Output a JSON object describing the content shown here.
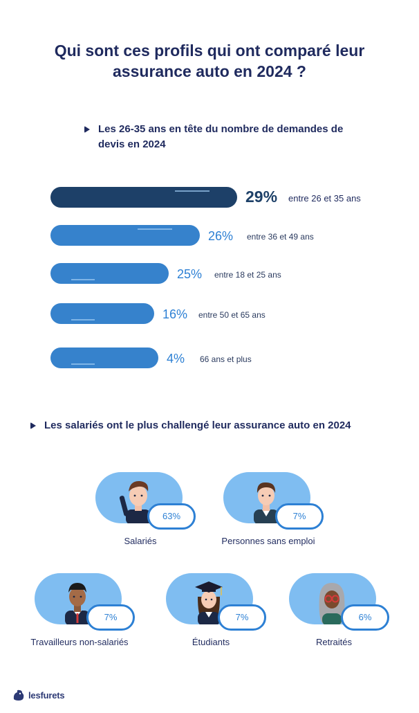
{
  "title": {
    "line1": "Qui sont ces profils qui ont comparé leur",
    "line2": "assurance auto en 2024 ?"
  },
  "chart_data": [
    {
      "type": "bar",
      "orientation": "horizontal",
      "title": "Les 26-35 ans en tête du nombre de demandes de devis en 2024",
      "categories": [
        "entre 26 et 35 ans",
        "entre 36 et 49 ans",
        "entre 18 et 25 ans",
        "entre 50 et 65 ans",
        "66 ans et plus"
      ],
      "values": [
        29,
        26,
        25,
        16,
        4
      ],
      "value_labels": [
        "29%",
        "26%",
        "25%",
        "16%",
        "4%"
      ],
      "highlight_index": 0,
      "colors": {
        "highlight": "#1d4068",
        "bar": "#3682cc",
        "value_text": "#2d80d4"
      }
    },
    {
      "type": "table",
      "title": "Les salariés ont le plus challengé leur assurance auto en 2024",
      "categories": [
        "Salariés",
        "Personnes sans emploi",
        "Travailleurs non-salariés",
        "Étudiants",
        "Retraités"
      ],
      "values": [
        63,
        7,
        7,
        7,
        6
      ],
      "value_labels": [
        "63%",
        "7%",
        "7%",
        "7%",
        "6%"
      ]
    }
  ],
  "headings": {
    "age": "Les 26-35 ans en tête du nombre de demandes de devis en 2024",
    "profile": "Les salariés ont le plus challengé leur assurance auto en 2024"
  },
  "profiles": [
    {
      "label": "Salariés",
      "pct": "63%",
      "icon": "employee-avatar-icon"
    },
    {
      "label": "Personnes sans emploi",
      "pct": "7%",
      "icon": "unemployed-avatar-icon"
    },
    {
      "label": "Travailleurs non-salariés",
      "pct": "7%",
      "icon": "self-employed-avatar-icon"
    },
    {
      "label": "Étudiants",
      "pct": "7%",
      "icon": "student-avatar-icon"
    },
    {
      "label": "Retraités",
      "pct": "6%",
      "icon": "retiree-avatar-icon"
    }
  ],
  "logo": {
    "text": "lesfurets",
    "icon": "ferret-logo-icon"
  }
}
